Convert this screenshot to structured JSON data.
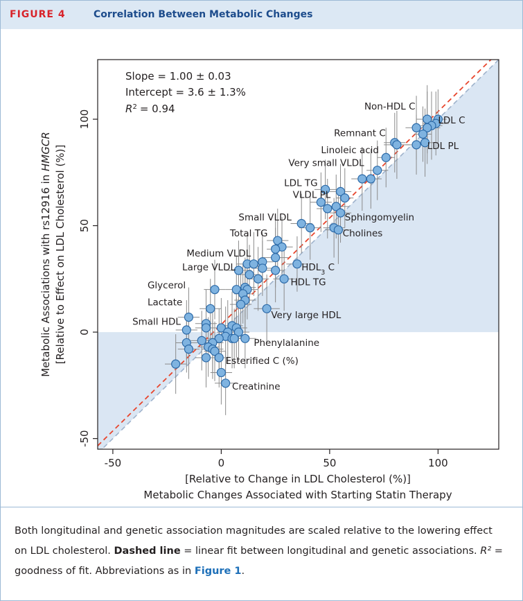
{
  "figure": {
    "tag": "FIGURE 4",
    "title": "Correlation Between Metabolic Changes"
  },
  "caption": {
    "part1": "Both longitudinal and genetic association magnitudes are scaled relative to the lowering effect on LDL cholesterol.",
    "bold": "Dashed line",
    "part2": "= linear fit between longitudinal and genetic associations.",
    "r2_symbol": "R²",
    "part3": "= goodness of fit. Abbreviations as in",
    "link": "Figure 1",
    "end": "."
  },
  "colors": {
    "fit_line": "#e8452c",
    "identity_line": "#9fb3cc",
    "shade": "#dae6f3",
    "point_fill": "#7fb3e0",
    "point_stroke": "#2c6aa8",
    "errorbar": "#8a8a8a",
    "header_bg": "#dce8f4",
    "tag_color": "#d8232a",
    "title_color": "#1d4c8c"
  },
  "chart_data": {
    "type": "scatter",
    "xlabel_line1": "[Relative to Change in LDL Cholesterol (%)]",
    "xlabel_line2": "Metabolic Changes Associated with Starting Statin Therapy",
    "ylabel_line1": "Metabolic Associations with rs12916 in HMGCR",
    "ylabel_line2": "[Relative to Effect on LDL Cholesterol (%)]",
    "xlim": [
      -57,
      128
    ],
    "ylim": [
      -55,
      128
    ],
    "xticks": [
      -50,
      0,
      50,
      100
    ],
    "yticks": [
      -50,
      0,
      50,
      100
    ],
    "stats": {
      "slope": "Slope = 1.00 ± 0.03",
      "intercept": "Intercept = 3.6 ± 1.3%",
      "r2_label": "R",
      "r2_value": "= 0.94"
    },
    "fit": {
      "slope": 1.0,
      "intercept": 3.6
    },
    "points": [
      {
        "x": 95,
        "y": 100,
        "xerr": 5,
        "yerr": 16
      },
      {
        "x": 100,
        "y": 100,
        "xerr": 4,
        "yerr": 14
      },
      {
        "x": 99,
        "y": 98,
        "xerr": 6,
        "yerr": 15
      },
      {
        "x": 97,
        "y": 97,
        "xerr": 5,
        "yerr": 16
      },
      {
        "x": 95,
        "y": 96,
        "xerr": 6,
        "yerr": 17
      },
      {
        "x": 90,
        "y": 96,
        "xerr": 5,
        "yerr": 15
      },
      {
        "x": 93,
        "y": 93,
        "xerr": 4,
        "yerr": 13
      },
      {
        "x": 94,
        "y": 89,
        "xerr": 4,
        "yerr": 16
      },
      {
        "x": 90,
        "y": 88,
        "xerr": 5,
        "yerr": 14
      },
      {
        "x": 80,
        "y": 89,
        "xerr": 5,
        "yerr": 14
      },
      {
        "x": 81,
        "y": 88,
        "xerr": 6,
        "yerr": 16
      },
      {
        "x": 76,
        "y": 82,
        "xerr": 4,
        "yerr": 14
      },
      {
        "x": 72,
        "y": 76,
        "xerr": 5,
        "yerr": 14
      },
      {
        "x": 69,
        "y": 72,
        "xerr": 5,
        "yerr": 14
      },
      {
        "x": 65,
        "y": 72,
        "xerr": 5,
        "yerr": 15
      },
      {
        "x": 48,
        "y": 67,
        "xerr": 5,
        "yerr": 14
      },
      {
        "x": 55,
        "y": 66,
        "xerr": 5,
        "yerr": 13
      },
      {
        "x": 57,
        "y": 63,
        "xerr": 4,
        "yerr": 14
      },
      {
        "x": 46,
        "y": 61,
        "xerr": 5,
        "yerr": 14
      },
      {
        "x": 53,
        "y": 59,
        "xerr": 6,
        "yerr": 15
      },
      {
        "x": 49,
        "y": 58,
        "xerr": 5,
        "yerr": 14
      },
      {
        "x": 55,
        "y": 56,
        "xerr": 5,
        "yerr": 14
      },
      {
        "x": 37,
        "y": 51,
        "xerr": 5,
        "yerr": 14
      },
      {
        "x": 41,
        "y": 49,
        "xerr": 5,
        "yerr": 15
      },
      {
        "x": 52,
        "y": 49,
        "xerr": 5,
        "yerr": 14
      },
      {
        "x": 54,
        "y": 48,
        "xerr": 6,
        "yerr": 16
      },
      {
        "x": 26,
        "y": 43,
        "xerr": 5,
        "yerr": 15
      },
      {
        "x": 28,
        "y": 40,
        "xerr": 5,
        "yerr": 14
      },
      {
        "x": 25,
        "y": 39,
        "xerr": 4,
        "yerr": 16
      },
      {
        "x": 25,
        "y": 35,
        "xerr": 6,
        "yerr": 14
      },
      {
        "x": 12,
        "y": 32,
        "xerr": 5,
        "yerr": 14
      },
      {
        "x": 15,
        "y": 32,
        "xerr": 5,
        "yerr": 15
      },
      {
        "x": 19,
        "y": 33,
        "xerr": 5,
        "yerr": 14
      },
      {
        "x": 35,
        "y": 32,
        "xerr": 5,
        "yerr": 13
      },
      {
        "x": 19,
        "y": 30,
        "xerr": 5,
        "yerr": 13
      },
      {
        "x": 25,
        "y": 29,
        "xerr": 4,
        "yerr": 15
      },
      {
        "x": 8,
        "y": 29,
        "xerr": 6,
        "yerr": 14
      },
      {
        "x": 13,
        "y": 27,
        "xerr": 5,
        "yerr": 14
      },
      {
        "x": 17,
        "y": 25,
        "xerr": 5,
        "yerr": 15
      },
      {
        "x": 29,
        "y": 25,
        "xerr": 5,
        "yerr": 15
      },
      {
        "x": -3,
        "y": 20,
        "xerr": 5,
        "yerr": 14
      },
      {
        "x": 7,
        "y": 20,
        "xerr": 5,
        "yerr": 16
      },
      {
        "x": 11,
        "y": 21,
        "xerr": 5,
        "yerr": 14
      },
      {
        "x": 12,
        "y": 20,
        "xerr": 5,
        "yerr": 14
      },
      {
        "x": 10,
        "y": 18,
        "xerr": 4,
        "yerr": 14
      },
      {
        "x": 11,
        "y": 15,
        "xerr": 5,
        "yerr": 15
      },
      {
        "x": 9,
        "y": 13,
        "xerr": 5,
        "yerr": 16
      },
      {
        "x": -5,
        "y": 11,
        "xerr": 5,
        "yerr": 14
      },
      {
        "x": 21,
        "y": 11,
        "xerr": 6,
        "yerr": 16
      },
      {
        "x": -15,
        "y": 7,
        "xerr": 5,
        "yerr": 14
      },
      {
        "x": -7,
        "y": 4,
        "xerr": 5,
        "yerr": 16
      },
      {
        "x": 0,
        "y": 2,
        "xerr": 4,
        "yerr": 14
      },
      {
        "x": 5,
        "y": 3,
        "xerr": 5,
        "yerr": 16
      },
      {
        "x": 7,
        "y": 2,
        "xerr": 5,
        "yerr": 14
      },
      {
        "x": -16,
        "y": 1,
        "xerr": 5,
        "yerr": 14
      },
      {
        "x": -7,
        "y": 2,
        "xerr": 5,
        "yerr": 14
      },
      {
        "x": 3,
        "y": 0,
        "xerr": 5,
        "yerr": 15
      },
      {
        "x": 8,
        "y": 0,
        "xerr": 5,
        "yerr": 14
      },
      {
        "x": 2,
        "y": -2,
        "xerr": 5,
        "yerr": 14
      },
      {
        "x": -1,
        "y": -3,
        "xerr": 5,
        "yerr": 14
      },
      {
        "x": 5,
        "y": -3,
        "xerr": 4,
        "yerr": 14
      },
      {
        "x": 6,
        "y": -3,
        "xerr": 5,
        "yerr": 14
      },
      {
        "x": 11,
        "y": -3,
        "xerr": 5,
        "yerr": 14
      },
      {
        "x": -9,
        "y": -4,
        "xerr": 5,
        "yerr": 14
      },
      {
        "x": -16,
        "y": -5,
        "xerr": 5,
        "yerr": 14
      },
      {
        "x": -4,
        "y": -5,
        "xerr": 5,
        "yerr": 14
      },
      {
        "x": -6,
        "y": -7,
        "xerr": 5,
        "yerr": 14
      },
      {
        "x": -4,
        "y": -8,
        "xerr": 5,
        "yerr": 14
      },
      {
        "x": -15,
        "y": -8,
        "xerr": 5,
        "yerr": 14
      },
      {
        "x": -3,
        "y": -9,
        "xerr": 5,
        "yerr": 14
      },
      {
        "x": -7,
        "y": -12,
        "xerr": 5,
        "yerr": 14
      },
      {
        "x": -1,
        "y": -12,
        "xerr": 4,
        "yerr": 14
      },
      {
        "x": -21,
        "y": -15,
        "xerr": 5,
        "yerr": 14
      },
      {
        "x": 0,
        "y": -19,
        "xerr": 5,
        "yerr": 15
      },
      {
        "x": 2,
        "y": -24,
        "xerr": 5,
        "yerr": 15
      }
    ],
    "labels": [
      {
        "text": "Non-HDL C",
        "x": 66,
        "y": 104.5
      },
      {
        "text": "LDL C",
        "x": 100,
        "y": 98
      },
      {
        "text": "Remnant C",
        "x": 52,
        "y": 92
      },
      {
        "text": "LDL PL",
        "x": 95,
        "y": 86
      },
      {
        "text": "Linoleic acid",
        "x": 46,
        "y": 84
      },
      {
        "text": "Very small VLDL",
        "x": 31,
        "y": 78
      },
      {
        "text": "LDL TG",
        "x": 29,
        "y": 68.5
      },
      {
        "text": "VLDL PL",
        "x": 33,
        "y": 63
      },
      {
        "text": "Sphingomyelin",
        "x": 57,
        "y": 52.5
      },
      {
        "text": "Small VLDL",
        "x": 8,
        "y": 52.5
      },
      {
        "text": "Total TG",
        "x": 4,
        "y": 45
      },
      {
        "text": "Cholines",
        "x": 56,
        "y": 45
      },
      {
        "text": "Medium VLDL",
        "x": -16,
        "y": 35.5
      },
      {
        "text": "Large VLDL",
        "x": -18,
        "y": 29
      },
      {
        "text": "HDL",
        "x": 37,
        "y": 29
      },
      {
        "text": "HDL TG",
        "x": 32,
        "y": 22
      },
      {
        "text": "Glycerol",
        "x": -34,
        "y": 20.5
      },
      {
        "text": "Lactate",
        "x": -34,
        "y": 12.5
      },
      {
        "text": "Very large HDL",
        "x": 23,
        "y": 6.5
      },
      {
        "text": "Small HDL",
        "x": -41,
        "y": 3.5
      },
      {
        "text": "Phenylalanine",
        "x": 15,
        "y": -6.5
      },
      {
        "text": "Esterified C (%)",
        "x": 2,
        "y": -15
      },
      {
        "text": "Creatinine",
        "x": 5,
        "y": -27
      }
    ],
    "hdl3_label": {
      "text": "HDL",
      "sub": "3",
      "suffix": " C"
    }
  }
}
